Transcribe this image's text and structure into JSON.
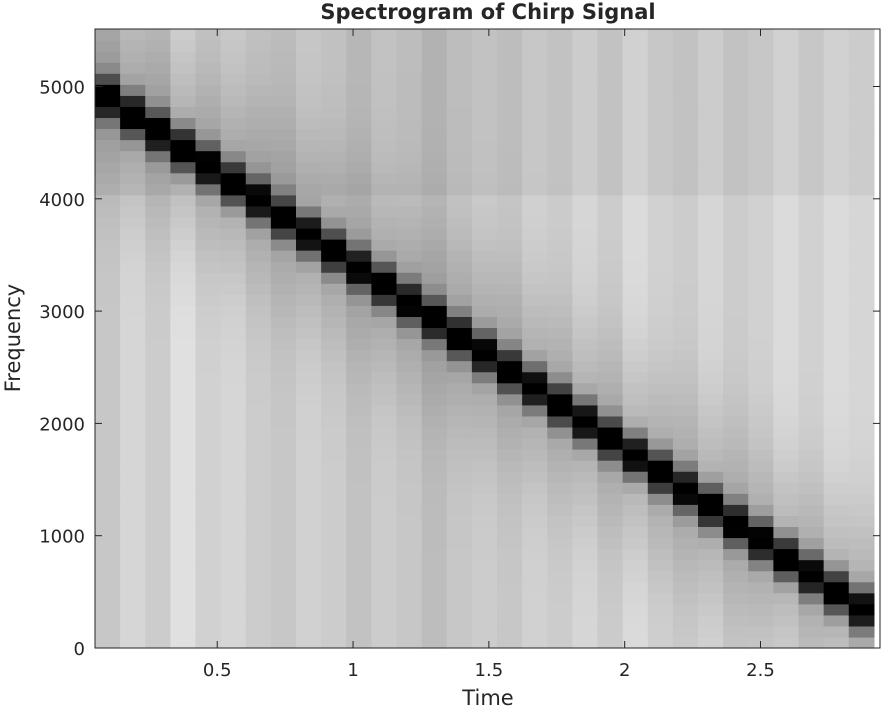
{
  "chart_data": {
    "type": "heatmap",
    "title": "Spectrogram of Chirp Signal",
    "xlabel": "Time",
    "ylabel": "Frequency",
    "xlim": [
      0.05,
      2.94
    ],
    "ylim": [
      0,
      5512
    ],
    "xticks": [
      0.5,
      1,
      1.5,
      2,
      2.5
    ],
    "xtick_labels": [
      "0.5",
      "1",
      "1.5",
      "2",
      "2.5"
    ],
    "yticks": [
      0,
      1000,
      2000,
      3000,
      4000,
      5000
    ],
    "ytick_labels": [
      "0",
      "1000",
      "2000",
      "3000",
      "4000",
      "5000"
    ],
    "colormap": "gray",
    "grid": false,
    "time_bins": {
      "start": 0.05,
      "width": 0.0925,
      "count": 31
    },
    "ridge": {
      "frequency_start": 4900,
      "frequency_end": 350,
      "width": 220
    },
    "column_brightness": [
      0.78,
      0.84,
      0.8,
      0.88,
      0.82,
      0.84,
      0.8,
      0.78,
      0.82,
      0.8,
      0.76,
      0.8,
      0.78,
      0.74,
      0.78,
      0.8,
      0.78,
      0.82,
      0.8,
      0.84,
      0.8,
      0.86,
      0.82,
      0.8,
      0.84,
      0.8,
      0.82,
      0.86,
      0.82,
      0.86,
      0.84
    ]
  }
}
